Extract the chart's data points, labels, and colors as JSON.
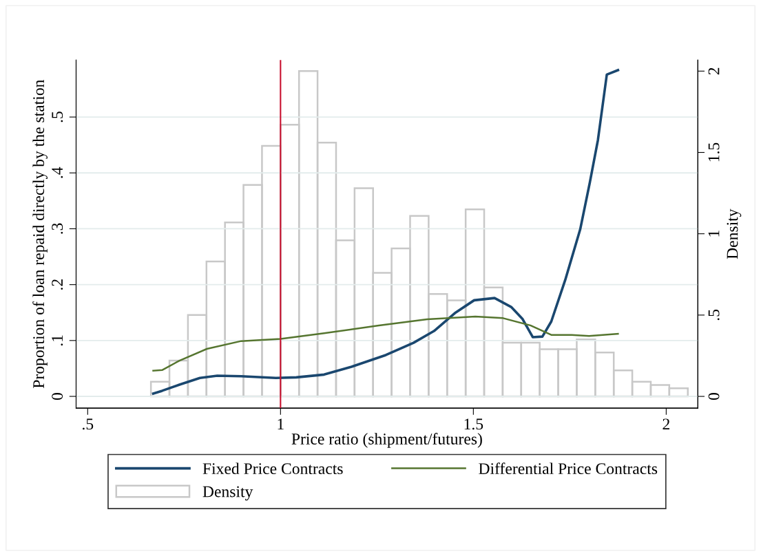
{
  "chart_data": {
    "type": "line",
    "xlabel": "Price ratio (shipment/futures)",
    "ylabel": "Proportion of loan repaid directly by the station",
    "y2label": "Density",
    "xlim": [
      0.47,
      2.082
    ],
    "xticks": [
      {
        "value": 0.5,
        "label": ".5"
      },
      1,
      1.5,
      2
    ],
    "ylim": [
      -0.021,
      0.602
    ],
    "yticks": [
      0,
      {
        "value": 0.1,
        "label": ".1"
      },
      {
        "value": 0.2,
        "label": ".2"
      },
      {
        "value": 0.3,
        "label": ".3"
      },
      {
        "value": 0.4,
        "label": ".4"
      },
      {
        "value": 0.5,
        "label": ".5"
      }
    ],
    "y2lim": [
      -0.072,
      2.068
    ],
    "y2ticks": [
      0,
      {
        "value": 0.5,
        "label": ".5"
      },
      1,
      1.5,
      2
    ],
    "grid": "y",
    "legend": "bottom",
    "ref_lines": [
      {
        "axis": "x",
        "value": 1,
        "color": "#c8102e"
      }
    ],
    "series": [
      {
        "name": "Density",
        "type": "histogram",
        "axis": "y2",
        "color": "#c8c8c8",
        "bins": [
          0.664,
          0.712,
          0.76,
          0.808,
          0.856,
          0.904,
          0.952,
          1.0,
          1.048,
          1.096,
          1.144,
          1.192,
          1.24,
          1.288,
          1.336,
          1.384,
          1.432,
          1.48,
          1.528,
          1.576,
          1.624,
          1.672,
          1.72,
          1.768,
          1.816,
          1.864,
          1.912,
          1.96,
          2.008,
          2.056
        ],
        "values": [
          0.09,
          0.22,
          0.5,
          0.83,
          1.07,
          1.3,
          1.54,
          1.67,
          2.0,
          1.56,
          0.96,
          1.28,
          0.76,
          0.91,
          1.11,
          0.63,
          0.59,
          1.15,
          0.67,
          0.33,
          0.33,
          0.29,
          0.29,
          0.35,
          0.27,
          0.16,
          0.09,
          0.07,
          0.05
        ]
      },
      {
        "name": "Fixed Price Contracts",
        "color": "#1a476f",
        "x": [
          0.67,
          0.693,
          0.738,
          0.791,
          0.836,
          0.898,
          0.988,
          1.041,
          1.113,
          1.184,
          1.273,
          1.345,
          1.398,
          1.452,
          1.502,
          1.555,
          1.598,
          1.627,
          1.654,
          1.679,
          1.702,
          1.738,
          1.777,
          1.802,
          1.823,
          1.846,
          1.875
        ],
        "values": [
          0.005,
          0.01,
          0.021,
          0.033,
          0.037,
          0.036,
          0.033,
          0.034,
          0.039,
          0.053,
          0.074,
          0.096,
          0.117,
          0.149,
          0.172,
          0.176,
          0.16,
          0.139,
          0.106,
          0.107,
          0.134,
          0.208,
          0.299,
          0.383,
          0.459,
          0.576,
          0.584
        ]
      },
      {
        "name": "Differential Price Contracts",
        "color": "#55752f",
        "x": [
          0.67,
          0.693,
          0.738,
          0.809,
          0.898,
          1.0,
          1.113,
          1.255,
          1.38,
          1.505,
          1.577,
          1.648,
          1.702,
          1.755,
          1.8,
          1.875
        ],
        "values": [
          0.046,
          0.047,
          0.064,
          0.085,
          0.099,
          0.103,
          0.113,
          0.127,
          0.138,
          0.143,
          0.14,
          0.127,
          0.11,
          0.11,
          0.108,
          0.112
        ]
      }
    ]
  }
}
